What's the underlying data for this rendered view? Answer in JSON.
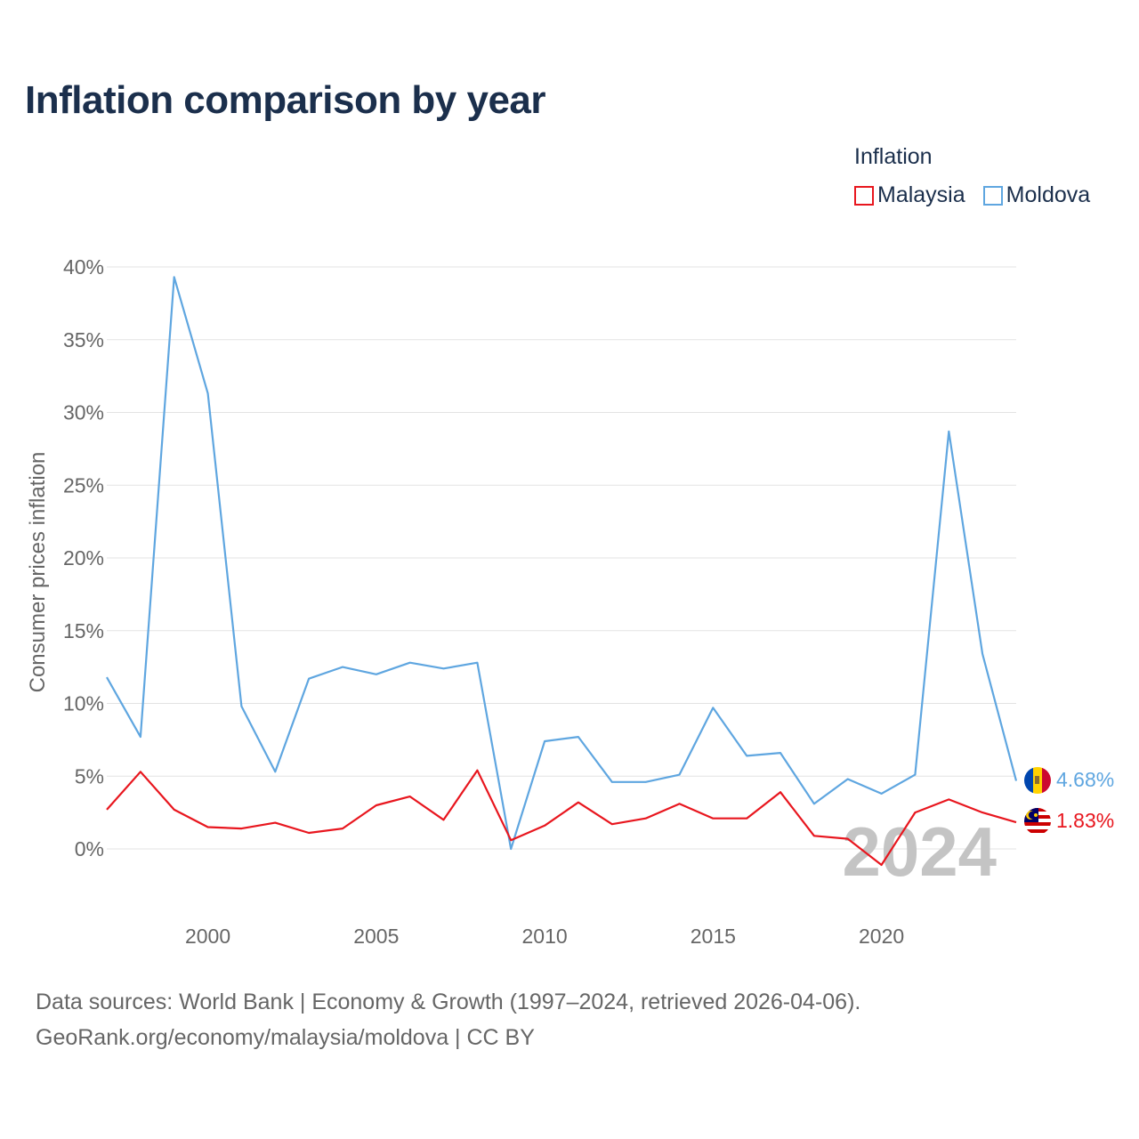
{
  "header": {
    "title": "Inflation comparison by year"
  },
  "legend": {
    "title": "Inflation",
    "items": [
      {
        "label": "Malaysia",
        "color": "#e8161e"
      },
      {
        "label": "Moldova",
        "color": "#5fa6e0"
      }
    ]
  },
  "footer": {
    "line1": "Data sources: World Bank | Economy & Growth (1997–2024, retrieved 2026-04-06).",
    "line2": "GeoRank.org/economy/malaysia/moldova | CC BY"
  },
  "chart_data": {
    "type": "line",
    "title": "Inflation comparison by year",
    "xlabel": "",
    "ylabel": "Consumer prices inflation",
    "watermark": "2024",
    "x": [
      1997,
      1998,
      1999,
      2000,
      2001,
      2002,
      2003,
      2004,
      2005,
      2006,
      2007,
      2008,
      2009,
      2010,
      2011,
      2012,
      2013,
      2014,
      2015,
      2016,
      2017,
      2018,
      2019,
      2020,
      2021,
      2022,
      2023,
      2024
    ],
    "xlim": [
      1997,
      2024
    ],
    "ylim": [
      -4,
      40
    ],
    "yticks": [
      0,
      5,
      10,
      15,
      20,
      25,
      30,
      35,
      40
    ],
    "ytick_labels": [
      "0%",
      "5%",
      "10%",
      "15%",
      "20%",
      "25%",
      "30%",
      "35%",
      "40%"
    ],
    "xticks": [
      2000,
      2005,
      2010,
      2015,
      2020
    ],
    "xtick_labels": [
      "2000",
      "2005",
      "2010",
      "2015",
      "2020"
    ],
    "grid": true,
    "legend_position": "top-right",
    "series": [
      {
        "name": "Moldova",
        "color": "#5fa6e0",
        "end_label": "4.68%",
        "values": [
          11.8,
          7.7,
          39.3,
          31.3,
          9.8,
          5.3,
          11.7,
          12.5,
          12.0,
          12.8,
          12.4,
          12.8,
          0.0,
          7.4,
          7.7,
          4.6,
          4.6,
          5.1,
          9.7,
          6.4,
          6.6,
          3.1,
          4.8,
          3.8,
          5.1,
          28.7,
          13.4,
          4.68
        ]
      },
      {
        "name": "Malaysia",
        "color": "#e8161e",
        "end_label": "1.83%",
        "values": [
          2.7,
          5.3,
          2.7,
          1.5,
          1.4,
          1.8,
          1.1,
          1.4,
          3.0,
          3.6,
          2.0,
          5.4,
          0.6,
          1.6,
          3.2,
          1.7,
          2.1,
          3.1,
          2.1,
          2.1,
          3.9,
          0.9,
          0.7,
          -1.1,
          2.5,
          3.4,
          2.5,
          1.83
        ]
      }
    ]
  }
}
